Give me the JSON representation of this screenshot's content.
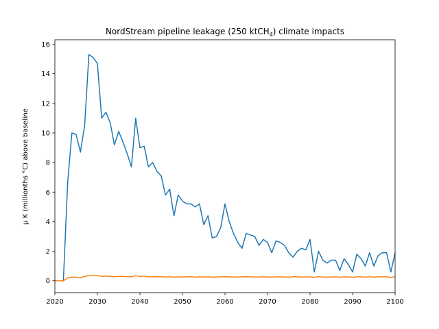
{
  "chart_data": {
    "type": "line",
    "title": "NordStream pipeline leakage (250 ktCH",
    "title_sub": "4",
    "title_end": ") climate impacts",
    "xlabel": "",
    "ylabel": "μ K (millionths °C) above baseline",
    "xlim": [
      2020,
      2100
    ],
    "ylim": [
      -0.8,
      16.3
    ],
    "xticks": [
      2020,
      2030,
      2040,
      2050,
      2060,
      2070,
      2080,
      2090,
      2100
    ],
    "yticks": [
      0,
      2,
      4,
      6,
      8,
      10,
      12,
      14,
      16
    ],
    "grid": false,
    "colors": [
      "#1f77b4",
      "#ff7f0e"
    ],
    "x": [
      2020,
      2021,
      2022,
      2023,
      2024,
      2025,
      2026,
      2027,
      2028,
      2029,
      2030,
      2031,
      2032,
      2033,
      2034,
      2035,
      2036,
      2037,
      2038,
      2039,
      2040,
      2041,
      2042,
      2043,
      2044,
      2045,
      2046,
      2047,
      2048,
      2049,
      2050,
      2051,
      2052,
      2053,
      2054,
      2055,
      2056,
      2057,
      2058,
      2059,
      2060,
      2061,
      2062,
      2063,
      2064,
      2065,
      2066,
      2067,
      2068,
      2069,
      2070,
      2071,
      2072,
      2073,
      2074,
      2075,
      2076,
      2077,
      2078,
      2079,
      2080,
      2081,
      2082,
      2083,
      2084,
      2085,
      2086,
      2087,
      2088,
      2089,
      2090,
      2091,
      2092,
      2093,
      2094,
      2095,
      2096,
      2097,
      2098,
      2099,
      2100
    ],
    "series": [
      {
        "values": [
          0,
          0,
          0,
          6.6,
          10.0,
          9.9,
          8.7,
          10.5,
          15.3,
          15.1,
          14.7,
          11.0,
          11.4,
          10.7,
          9.2,
          10.1,
          9.4,
          8.6,
          7.7,
          11.0,
          9.0,
          9.1,
          7.7,
          8.0,
          7.4,
          7.1,
          5.8,
          6.2,
          4.4,
          5.8,
          5.4,
          5.2,
          5.2,
          5.0,
          5.2,
          3.8,
          4.4,
          2.9,
          3.0,
          3.6,
          5.2,
          4.0,
          3.2,
          2.6,
          2.2,
          3.2,
          3.1,
          3.0,
          2.4,
          2.8,
          2.6,
          1.9,
          2.7,
          2.6,
          2.4,
          1.9,
          1.6,
          2.0,
          2.2,
          2.1,
          2.8,
          0.6,
          2.0,
          1.4,
          1.2,
          1.4,
          1.4,
          0.7,
          1.5,
          1.1,
          0.6,
          1.8,
          1.5,
          1.0,
          1.9,
          1.0,
          1.7,
          1.9,
          1.9,
          0.6,
          1.9
        ]
      },
      {
        "values": [
          0,
          0,
          0,
          0.2,
          0.25,
          0.25,
          0.2,
          0.3,
          0.35,
          0.35,
          0.35,
          0.3,
          0.32,
          0.3,
          0.28,
          0.3,
          0.3,
          0.28,
          0.27,
          0.35,
          0.3,
          0.32,
          0.27,
          0.27,
          0.28,
          0.28,
          0.26,
          0.28,
          0.25,
          0.27,
          0.26,
          0.27,
          0.28,
          0.25,
          0.27,
          0.26,
          0.27,
          0.25,
          0.26,
          0.27,
          0.28,
          0.27,
          0.26,
          0.26,
          0.27,
          0.28,
          0.27,
          0.26,
          0.26,
          0.27,
          0.26,
          0.25,
          0.27,
          0.27,
          0.26,
          0.25,
          0.28,
          0.27,
          0.26,
          0.26,
          0.27,
          0.24,
          0.28,
          0.26,
          0.25,
          0.26,
          0.27,
          0.24,
          0.27,
          0.26,
          0.24,
          0.27,
          0.27,
          0.25,
          0.28,
          0.25,
          0.27,
          0.27,
          0.27,
          0.24,
          0.27
        ]
      }
    ]
  }
}
